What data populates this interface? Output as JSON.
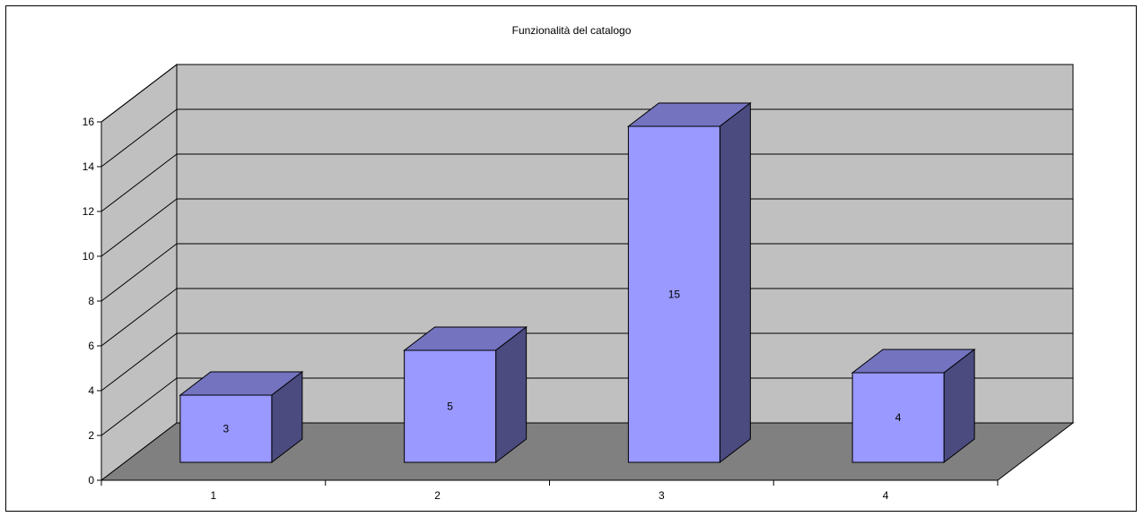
{
  "chart_data": {
    "type": "bar",
    "title": "Funzionalità del catalogo",
    "xlabel": "",
    "ylabel": "",
    "categories": [
      "1",
      "2",
      "3",
      "4"
    ],
    "values": [
      3,
      5,
      15,
      4
    ],
    "ylim": [
      0,
      16
    ],
    "yticks": [
      "0",
      "2",
      "4",
      "6",
      "8",
      "10",
      "12",
      "14",
      "16"
    ],
    "grid": true,
    "legend": "none",
    "colors": {
      "bar_front": "#9999ff",
      "bar_top": "#7373c0",
      "bar_side": "#4b4b80",
      "back_wall": "#c0c0c0",
      "side_wall": "#c0c0c0",
      "floor": "#808080"
    }
  }
}
